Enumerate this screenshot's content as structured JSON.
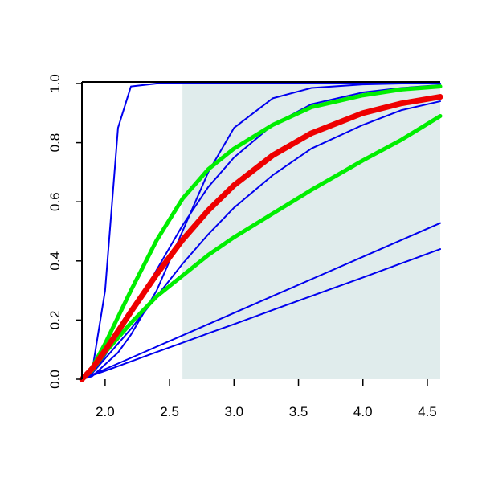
{
  "chart_data": {
    "type": "line",
    "x": [
      1.82,
      1.9,
      2.0,
      2.1,
      2.2,
      2.4,
      2.6,
      2.8,
      3.0,
      3.3,
      3.6,
      4.0,
      4.3,
      4.6
    ],
    "series": [
      {
        "color": "#0000ee",
        "values": [
          0,
          0.03,
          0.3,
          0.85,
          0.99,
          1,
          1,
          1,
          1,
          1,
          1,
          1,
          1,
          1
        ]
      },
      {
        "color": "#0000ee",
        "values": [
          0,
          0.01,
          0.05,
          0.09,
          0.15,
          0.3,
          0.5,
          0.7,
          0.85,
          0.95,
          0.985,
          0.997,
          1,
          1
        ]
      },
      {
        "color": "#0000ee",
        "values": [
          0,
          0.02,
          0.08,
          0.15,
          0.22,
          0.37,
          0.52,
          0.65,
          0.75,
          0.86,
          0.93,
          0.97,
          0.985,
          0.995
        ]
      },
      {
        "color": "#0000ee",
        "values": [
          0,
          0.02,
          0.07,
          0.12,
          0.17,
          0.28,
          0.39,
          0.49,
          0.58,
          0.69,
          0.78,
          0.86,
          0.91,
          0.94
        ]
      },
      {
        "color": "#0000ee",
        "values": [
          0,
          0.015,
          0.034,
          0.053,
          0.072,
          0.11,
          0.148,
          0.186,
          0.224,
          0.281,
          0.338,
          0.414,
          0.471,
          0.528
        ]
      },
      {
        "color": "#0000ee",
        "values": [
          0,
          0.013,
          0.028,
          0.044,
          0.06,
          0.092,
          0.123,
          0.155,
          0.186,
          0.234,
          0.281,
          0.344,
          0.392,
          0.44
        ]
      },
      {
        "color": "#00ee00",
        "values": [
          0,
          0.04,
          0.12,
          0.21,
          0.3,
          0.47,
          0.61,
          0.71,
          0.78,
          0.86,
          0.92,
          0.96,
          0.98,
          0.99
        ]
      },
      {
        "color": "#00ee00",
        "values": [
          0,
          0.03,
          0.09,
          0.14,
          0.19,
          0.28,
          0.35,
          0.42,
          0.48,
          0.56,
          0.64,
          0.74,
          0.81,
          0.89
        ]
      },
      {
        "color": "#ee0000",
        "values": [
          0,
          0.036,
          0.097,
          0.162,
          0.228,
          0.355,
          0.471,
          0.571,
          0.656,
          0.757,
          0.832,
          0.9,
          0.933,
          0.955
        ]
      }
    ],
    "xlim": [
      1.82,
      4.6
    ],
    "ylim": [
      0,
      1
    ],
    "xticks": [
      {
        "value": 2,
        "label": "2.0"
      },
      {
        "value": 2.5,
        "label": "2.5"
      },
      {
        "value": 3,
        "label": "3.0"
      },
      {
        "value": 3.5,
        "label": "3.5"
      },
      {
        "value": 4,
        "label": "4.0"
      },
      {
        "value": 4.5,
        "label": "4.5"
      }
    ],
    "yticks": [
      {
        "value": 0,
        "label": "0.0"
      },
      {
        "value": 0.2,
        "label": "0.2"
      },
      {
        "value": 0.4,
        "label": "0.4"
      },
      {
        "value": 0.6,
        "label": "0.6"
      },
      {
        "value": 0.8,
        "label": "0.8"
      },
      {
        "value": 1,
        "label": "1.0"
      }
    ],
    "shade_x": [
      2.6,
      4.6
    ],
    "shade_color": "#e0ecec"
  }
}
